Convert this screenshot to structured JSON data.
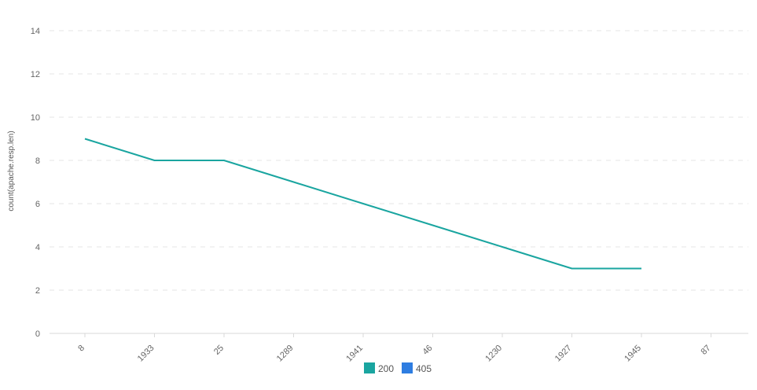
{
  "chart_data": {
    "type": "line",
    "title": "",
    "xlabel": "",
    "ylabel": "count(apache.resp.len)",
    "categories": [
      "8",
      "1933",
      "25",
      "1289",
      "1941",
      "46",
      "1230",
      "1927",
      "1945",
      "87"
    ],
    "ylim": [
      0,
      14
    ],
    "yticks": [
      0,
      2,
      4,
      6,
      8,
      10,
      12,
      14
    ],
    "grid": true,
    "legend_position": "bottom-center",
    "series": [
      {
        "name": "200",
        "color": "#1aa5a0",
        "values": [
          9,
          8,
          8,
          7,
          6,
          5,
          4,
          3,
          3,
          null
        ]
      },
      {
        "name": "405",
        "color": "#2e7de1",
        "values": [
          null,
          null,
          null,
          null,
          null,
          null,
          null,
          null,
          null,
          null
        ]
      }
    ]
  }
}
